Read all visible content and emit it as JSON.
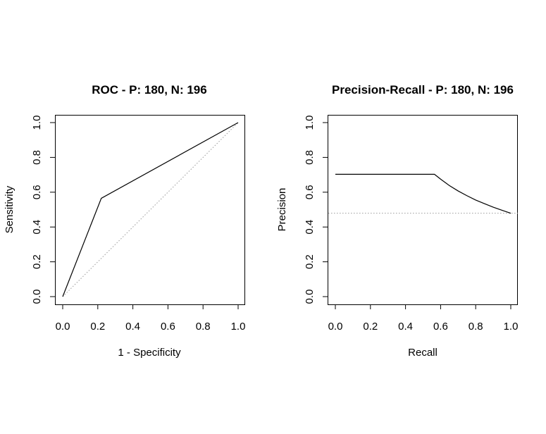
{
  "chart_data": [
    {
      "type": "line",
      "title": "ROC - P: 180, N: 196",
      "xlabel": "1 - Specificity",
      "ylabel": "Sensitivity",
      "xlim": [
        0,
        1
      ],
      "ylim": [
        0,
        1
      ],
      "xticks": [
        "0.0",
        "0.2",
        "0.4",
        "0.6",
        "0.8",
        "1.0"
      ],
      "yticks": [
        "0.0",
        "0.2",
        "0.4",
        "0.6",
        "0.8",
        "1.0"
      ],
      "grid": false,
      "series": [
        {
          "x": [
            0,
            0.22,
            1
          ],
          "y": [
            0,
            0.565,
            1
          ]
        }
      ],
      "reference_line": {
        "x": [
          0,
          1
        ],
        "y": [
          0,
          1
        ]
      }
    },
    {
      "type": "line",
      "title": "Precision-Recall - P: 180, N: 196",
      "xlabel": "Recall",
      "ylabel": "Precision",
      "xlim": [
        0,
        1
      ],
      "ylim": [
        0,
        1
      ],
      "xticks": [
        "0.0",
        "0.2",
        "0.4",
        "0.6",
        "0.8",
        "1.0"
      ],
      "yticks": [
        "0.0",
        "0.2",
        "0.4",
        "0.6",
        "0.8",
        "1.0"
      ],
      "grid": false,
      "series": [
        {
          "x": [
            0,
            0.565,
            0.6,
            0.65,
            0.7,
            0.75,
            0.8,
            0.85,
            0.9,
            0.95,
            1.0
          ],
          "y": [
            0.703,
            0.703,
            0.675,
            0.638,
            0.607,
            0.58,
            0.555,
            0.534,
            0.514,
            0.496,
            0.479
          ]
        }
      ],
      "reference_line": {
        "x": [
          -0.04,
          1.04
        ],
        "y": [
          0.479,
          0.479
        ]
      }
    }
  ]
}
